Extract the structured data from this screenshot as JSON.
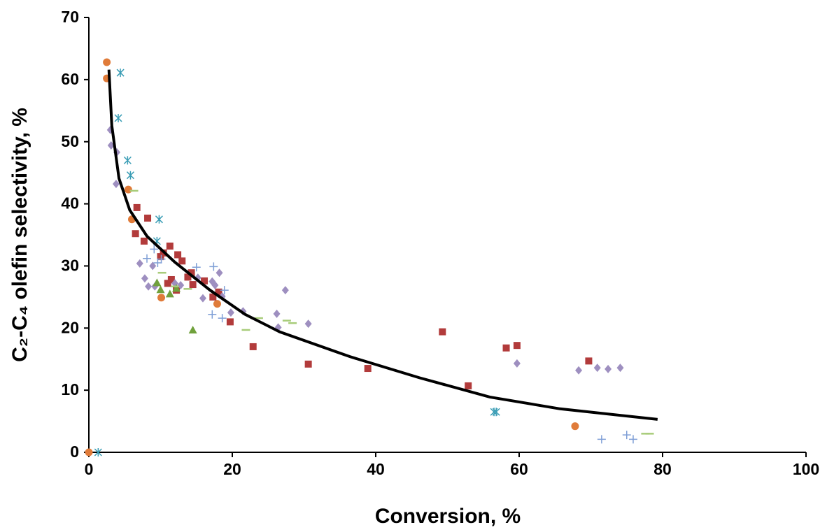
{
  "chart_data": {
    "type": "scatter",
    "xlabel": "Conversion, %",
    "ylabel": "C₂-C₄ olefin selectivity, %",
    "xlim": [
      0,
      100
    ],
    "xticks": [
      0,
      20,
      40,
      60,
      80,
      100
    ],
    "ylim": [
      0,
      70
    ],
    "yticks": [
      0,
      10,
      20,
      30,
      40,
      50,
      60,
      70
    ],
    "grid": false,
    "series": [
      {
        "marker": "circle",
        "color": "#e07b39",
        "x": [
          0,
          2.5,
          2.5,
          5.5,
          6.0,
          10.1,
          17.9,
          67.8
        ],
        "values": [
          0,
          62.8,
          60.2,
          42.3,
          37.5,
          24.9,
          23.9,
          4.2
        ]
      },
      {
        "marker": "asterisk",
        "color": "#3a9db5",
        "x": [
          1.3,
          4.4,
          4.1,
          5.4,
          5.8,
          9.8,
          9.5,
          56.5,
          56.8
        ],
        "values": [
          0,
          61.1,
          53.8,
          47.0,
          44.6,
          37.5,
          34.0,
          6.5,
          6.5
        ]
      },
      {
        "marker": "square",
        "color": "#b23b3b",
        "x": [
          6.5,
          6.7,
          7.7,
          8.2,
          10.0,
          10.4,
          11.3,
          12.4,
          13.0,
          11.0,
          11.5,
          12.2,
          13.8,
          14.3,
          14.5,
          16.1,
          18.1,
          17.3,
          19.7,
          22.9,
          30.6,
          38.9,
          49.3,
          52.9,
          58.2,
          59.7,
          69.7
        ],
        "values": [
          35.2,
          39.4,
          34.0,
          37.7,
          31.5,
          32.1,
          33.2,
          31.8,
          30.8,
          27.2,
          27.8,
          26.1,
          28.2,
          28.9,
          27.0,
          27.6,
          25.8,
          25.0,
          21.0,
          17.0,
          14.2,
          13.5,
          19.4,
          10.7,
          16.8,
          17.2,
          14.7
        ]
      },
      {
        "marker": "diamond",
        "color": "#9e8fc0",
        "x": [
          3.0,
          3.1,
          3.9,
          3.8,
          7.1,
          7.8,
          8.3,
          8.9,
          9.2,
          12.0,
          12.8,
          15.2,
          15.9,
          17.2,
          17.6,
          18.2,
          18.6,
          19.8,
          21.5,
          26.2,
          26.4,
          27.4,
          30.6,
          59.7,
          68.3,
          70.9,
          72.4,
          74.1
        ],
        "values": [
          51.9,
          49.4,
          48.3,
          43.2,
          30.4,
          28.0,
          26.7,
          30.0,
          26.7,
          27.2,
          26.9,
          28.1,
          24.8,
          27.5,
          26.9,
          28.9,
          25.1,
          22.5,
          22.7,
          22.3,
          20.1,
          26.1,
          20.7,
          14.3,
          13.2,
          13.6,
          13.4,
          13.6
        ]
      },
      {
        "marker": "triangle",
        "color": "#70a13c",
        "x": [
          9.5,
          10.0,
          11.3,
          12.2,
          14.5
        ],
        "values": [
          27.3,
          26.2,
          25.5,
          26.4,
          19.7
        ]
      },
      {
        "marker": "plus",
        "color": "#7f9fd6",
        "x": [
          8.1,
          9.1,
          9.6,
          10.1,
          15.0,
          17.4,
          17.2,
          18.6,
          18.9,
          71.5,
          75.0,
          75.9
        ],
        "values": [
          31.2,
          32.7,
          30.5,
          31.1,
          29.8,
          29.9,
          22.2,
          21.6,
          26.1,
          2.1,
          2.8,
          2.1
        ]
      },
      {
        "marker": "dash",
        "color": "#a8cc7a",
        "x": [
          6.3,
          10.2,
          12.0,
          13.8,
          21.9,
          23.7,
          27.6,
          28.4,
          77.6,
          78.2
        ],
        "values": [
          42.1,
          28.9,
          26.7,
          26.3,
          19.7,
          21.6,
          21.2,
          20.8,
          3.0,
          3.0
        ]
      },
      {
        "marker": "line",
        "color": "#000000",
        "x": [
          2.8,
          3.2,
          4.2,
          5.7,
          8.1,
          12.0,
          16.9,
          21.8,
          26.6,
          36.4,
          46.1,
          55.9,
          65.7,
          79.3
        ],
        "values": [
          61.6,
          52.6,
          44.1,
          39.0,
          34.8,
          30.6,
          26.1,
          22.2,
          19.4,
          15.4,
          12.0,
          8.9,
          7.0,
          5.3
        ]
      }
    ]
  }
}
